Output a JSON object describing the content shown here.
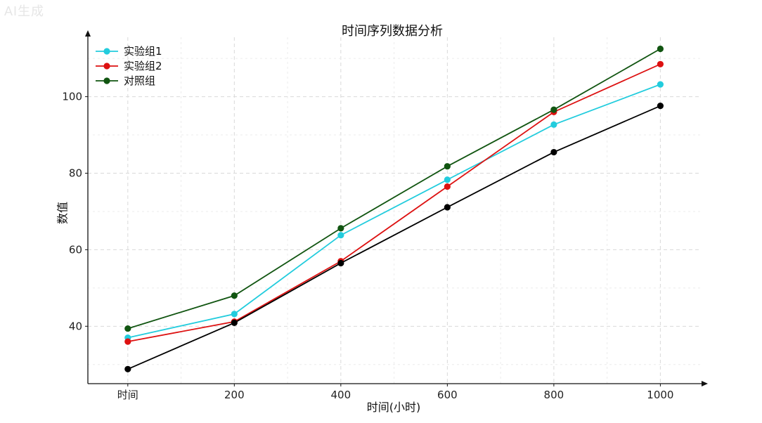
{
  "watermark": "AI生成",
  "chart_data": {
    "type": "line",
    "title": "时间序列数据分析",
    "xlabel": "时间(小时)",
    "ylabel": "数值",
    "x": [
      0,
      200,
      400,
      600,
      800,
      1000
    ],
    "x_tick_labels": [
      "时间",
      "200",
      "400",
      "600",
      "800",
      "1000"
    ],
    "y_ticks": [
      40,
      60,
      80,
      100
    ],
    "xlim": [
      -75,
      1080
    ],
    "ylim": [
      25,
      117
    ],
    "grid": true,
    "legend_position": "top-left",
    "series": [
      {
        "name": "实验组1",
        "color": "#22ccdd",
        "in_legend": true,
        "values": [
          37.0,
          43.2,
          63.8,
          78.3,
          92.7,
          103.2
        ]
      },
      {
        "name": "实验组2",
        "color": "#dd1111",
        "in_legend": true,
        "values": [
          36.0,
          41.2,
          57.0,
          76.5,
          96.0,
          108.5
        ]
      },
      {
        "name": "对照组",
        "color": "#115511",
        "in_legend": true,
        "values": [
          39.4,
          48.0,
          65.6,
          81.8,
          96.6,
          112.5
        ]
      },
      {
        "name": "",
        "color": "#000000",
        "in_legend": false,
        "values": [
          28.8,
          40.9,
          56.5,
          71.1,
          85.5,
          97.6
        ]
      }
    ]
  }
}
